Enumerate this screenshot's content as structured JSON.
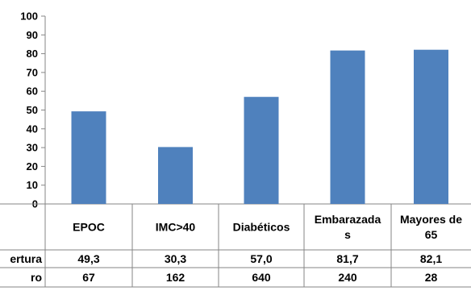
{
  "chart_data": {
    "type": "bar",
    "categories": [
      [
        "EPOC"
      ],
      [
        "IMC>40"
      ],
      [
        "Diabéticos"
      ],
      [
        "Embarazada",
        "s"
      ],
      [
        "Mayores de",
        "65"
      ]
    ],
    "series": [
      {
        "name": "ertura",
        "values": [
          49.3,
          30.3,
          57.0,
          81.7,
          82.1
        ],
        "color": "#4F81BD"
      }
    ],
    "table_rows": [
      {
        "label": "ertura",
        "cells": [
          "49,3",
          "30,3",
          "57,0",
          "81,7",
          "82,1"
        ]
      },
      {
        "label": "ro",
        "cells": [
          "67",
          "162",
          "640",
          "240",
          "28"
        ]
      }
    ],
    "ylim": [
      0,
      100
    ],
    "yticks": [
      "0",
      "10",
      "20",
      "30",
      "40",
      "50",
      "60",
      "70",
      "80",
      "90",
      "100"
    ],
    "grid": false,
    "legend": "none"
  }
}
